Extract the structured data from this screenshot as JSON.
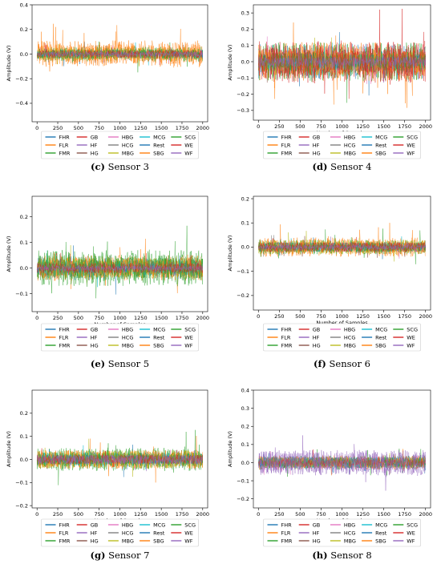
{
  "legend_labels": [
    "FHR",
    "GB",
    "HBG",
    "MCG",
    "SCG",
    "FLR",
    "HF",
    "HCG",
    "Rest",
    "WE",
    "FMR",
    "HG",
    "MBG",
    "SBG",
    "WF"
  ],
  "chart_data": [
    {
      "type": "line",
      "caption_letter": "(c)",
      "caption_text": " Sensor 3",
      "xlabel": "Number of Samples",
      "ylabel": "Amplitude (V)",
      "xlim": [
        -60,
        2060
      ],
      "ylim": [
        -0.55,
        0.4
      ],
      "xticks": [
        0,
        250,
        500,
        750,
        1000,
        1250,
        1500,
        1750,
        2000
      ],
      "yticks": [
        -0.4,
        -0.2,
        0.0,
        0.2,
        0.4
      ],
      "ytick_labels": [
        "−0.4",
        "−0.2",
        "0.0",
        "0.2",
        "0.4"
      ],
      "grid": false,
      "legend": "bottom",
      "series": [
        {
          "name": "FHR",
          "color": "#1f77b4",
          "amp": 0.04
        },
        {
          "name": "FLR",
          "color": "#ff7f0e",
          "amp": 0.11
        },
        {
          "name": "FMR",
          "color": "#2ca02c",
          "amp": 0.06
        },
        {
          "name": "GB",
          "color": "#d62728",
          "amp": 0.04
        },
        {
          "name": "HF",
          "color": "#9467bd",
          "amp": 0.03
        },
        {
          "name": "HG",
          "color": "#8c564b",
          "amp": 0.03
        },
        {
          "name": "HBG",
          "color": "#e377c2",
          "amp": 0.03
        },
        {
          "name": "HCG",
          "color": "#7f7f7f",
          "amp": 0.03
        },
        {
          "name": "MBG",
          "color": "#bcbd22",
          "amp": 0.05
        },
        {
          "name": "MCG",
          "color": "#17becf",
          "amp": 0.04
        },
        {
          "name": "Rest",
          "color": "#1f77b4",
          "amp": 0.02
        },
        {
          "name": "SBG",
          "color": "#ff7f0e",
          "amp": 0.08
        },
        {
          "name": "SCG",
          "color": "#2ca02c",
          "amp": 0.04
        },
        {
          "name": "WE",
          "color": "#d62728",
          "amp": 0.03
        },
        {
          "name": "WF",
          "color": "#9467bd",
          "amp": 0.02
        }
      ]
    },
    {
      "type": "line",
      "caption_letter": "(d)",
      "caption_text": " Sensor 4",
      "xlabel": "Number of Samples",
      "ylabel": "Amplitude (V)",
      "xlim": [
        -60,
        2060
      ],
      "ylim": [
        -0.36,
        0.35
      ],
      "xticks": [
        0,
        250,
        500,
        750,
        1000,
        1250,
        1500,
        1750,
        2000
      ],
      "yticks": [
        -0.3,
        -0.2,
        -0.1,
        0.0,
        0.1,
        0.2,
        0.3
      ],
      "ytick_labels": [
        "−0.3",
        "−0.2",
        "−0.1",
        "0.0",
        "0.1",
        "0.2",
        "0.3"
      ],
      "grid": false,
      "legend": "bottom",
      "series": [
        {
          "name": "FHR",
          "color": "#1f77b4",
          "amp": 0.11
        },
        {
          "name": "FLR",
          "color": "#ff7f0e",
          "amp": 0.12
        },
        {
          "name": "FMR",
          "color": "#2ca02c",
          "amp": 0.12
        },
        {
          "name": "GB",
          "color": "#d62728",
          "amp": 0.13
        },
        {
          "name": "HF",
          "color": "#9467bd",
          "amp": 0.05
        },
        {
          "name": "HG",
          "color": "#8c564b",
          "amp": 0.07
        },
        {
          "name": "HBG",
          "color": "#e377c2",
          "amp": 0.06
        },
        {
          "name": "HCG",
          "color": "#7f7f7f",
          "amp": 0.05
        },
        {
          "name": "MBG",
          "color": "#bcbd22",
          "amp": 0.06
        },
        {
          "name": "MCG",
          "color": "#17becf",
          "amp": 0.05
        },
        {
          "name": "Rest",
          "color": "#1f77b4",
          "amp": 0.04
        },
        {
          "name": "SBG",
          "color": "#ff7f0e",
          "amp": 0.08
        },
        {
          "name": "SCG",
          "color": "#2ca02c",
          "amp": 0.06
        },
        {
          "name": "WE",
          "color": "#d62728",
          "amp": 0.09
        },
        {
          "name": "WF",
          "color": "#9467bd",
          "amp": 0.03
        }
      ]
    },
    {
      "type": "line",
      "caption_letter": "(e)",
      "caption_text": " Sensor 5",
      "xlabel": "Number of Samples",
      "ylabel": "Amplitude (V)",
      "xlim": [
        -60,
        2060
      ],
      "ylim": [
        -0.17,
        0.28
      ],
      "xticks": [
        0,
        250,
        500,
        750,
        1000,
        1250,
        1500,
        1750,
        2000
      ],
      "yticks": [
        -0.1,
        0.0,
        0.1,
        0.2
      ],
      "ytick_labels": [
        "−0.1",
        "0.0",
        "0.1",
        "0.2"
      ],
      "grid": false,
      "legend": "bottom",
      "series": [
        {
          "name": "FHR",
          "color": "#1f77b4",
          "amp": 0.04
        },
        {
          "name": "FLR",
          "color": "#ff7f0e",
          "amp": 0.05
        },
        {
          "name": "FMR",
          "color": "#2ca02c",
          "amp": 0.07
        },
        {
          "name": "GB",
          "color": "#d62728",
          "amp": 0.03
        },
        {
          "name": "HF",
          "color": "#9467bd",
          "amp": 0.02
        },
        {
          "name": "HG",
          "color": "#8c564b",
          "amp": 0.02
        },
        {
          "name": "HBG",
          "color": "#e377c2",
          "amp": 0.02
        },
        {
          "name": "HCG",
          "color": "#7f7f7f",
          "amp": 0.02
        },
        {
          "name": "MBG",
          "color": "#bcbd22",
          "amp": 0.04
        },
        {
          "name": "MCG",
          "color": "#17becf",
          "amp": 0.03
        },
        {
          "name": "Rest",
          "color": "#1f77b4",
          "amp": 0.02
        },
        {
          "name": "SBG",
          "color": "#ff7f0e",
          "amp": 0.04
        },
        {
          "name": "SCG",
          "color": "#2ca02c",
          "amp": 0.05
        },
        {
          "name": "WE",
          "color": "#d62728",
          "amp": 0.02
        },
        {
          "name": "WF",
          "color": "#9467bd",
          "amp": 0.01
        }
      ]
    },
    {
      "type": "line",
      "caption_letter": "(f)",
      "caption_text": " Sensor 6",
      "xlabel": "Number of Samples",
      "ylabel": "Amplitude (V)",
      "xlim": [
        -60,
        2060
      ],
      "ylim": [
        -0.26,
        0.21
      ],
      "xticks": [
        0,
        250,
        500,
        750,
        1000,
        1250,
        1500,
        1750,
        2000
      ],
      "yticks": [
        -0.2,
        -0.1,
        0.0,
        0.1,
        0.2
      ],
      "ytick_labels": [
        "−0.2",
        "−0.1",
        "0.0",
        "0.1",
        "0.2"
      ],
      "grid": false,
      "legend": "bottom",
      "series": [
        {
          "name": "FHR",
          "color": "#1f77b4",
          "amp": 0.02
        },
        {
          "name": "FLR",
          "color": "#ff7f0e",
          "amp": 0.04
        },
        {
          "name": "FMR",
          "color": "#2ca02c",
          "amp": 0.03
        },
        {
          "name": "GB",
          "color": "#d62728",
          "amp": 0.02
        },
        {
          "name": "HF",
          "color": "#9467bd",
          "amp": 0.02
        },
        {
          "name": "HG",
          "color": "#8c564b",
          "amp": 0.02
        },
        {
          "name": "HBG",
          "color": "#e377c2",
          "amp": 0.02
        },
        {
          "name": "HCG",
          "color": "#7f7f7f",
          "amp": 0.02
        },
        {
          "name": "MBG",
          "color": "#bcbd22",
          "amp": 0.03
        },
        {
          "name": "MCG",
          "color": "#17becf",
          "amp": 0.02
        },
        {
          "name": "Rest",
          "color": "#1f77b4",
          "amp": 0.01
        },
        {
          "name": "SBG",
          "color": "#ff7f0e",
          "amp": 0.03
        },
        {
          "name": "SCG",
          "color": "#2ca02c",
          "amp": 0.02
        },
        {
          "name": "WE",
          "color": "#d62728",
          "amp": 0.02
        },
        {
          "name": "WF",
          "color": "#9467bd",
          "amp": 0.01
        }
      ]
    },
    {
      "type": "line",
      "caption_letter": "(g)",
      "caption_text": " Sensor 7",
      "xlabel": "Number of Samples",
      "ylabel": "Amplitude (V)",
      "xlim": [
        -60,
        2060
      ],
      "ylim": [
        -0.21,
        0.3
      ],
      "xticks": [
        0,
        250,
        500,
        750,
        1000,
        1250,
        1500,
        1750,
        2000
      ],
      "yticks": [
        -0.2,
        -0.1,
        0.0,
        0.1,
        0.2
      ],
      "ytick_labels": [
        "−0.2",
        "−0.1",
        "0.0",
        "0.1",
        "0.2"
      ],
      "grid": false,
      "legend": "bottom",
      "series": [
        {
          "name": "FHR",
          "color": "#1f77b4",
          "amp": 0.03
        },
        {
          "name": "FLR",
          "color": "#ff7f0e",
          "amp": 0.04
        },
        {
          "name": "FMR",
          "color": "#2ca02c",
          "amp": 0.05
        },
        {
          "name": "GB",
          "color": "#d62728",
          "amp": 0.02
        },
        {
          "name": "HF",
          "color": "#9467bd",
          "amp": 0.02
        },
        {
          "name": "HG",
          "color": "#8c564b",
          "amp": 0.02
        },
        {
          "name": "HBG",
          "color": "#e377c2",
          "amp": 0.02
        },
        {
          "name": "HCG",
          "color": "#7f7f7f",
          "amp": 0.02
        },
        {
          "name": "MBG",
          "color": "#bcbd22",
          "amp": 0.04
        },
        {
          "name": "MCG",
          "color": "#17becf",
          "amp": 0.03
        },
        {
          "name": "Rest",
          "color": "#1f77b4",
          "amp": 0.02
        },
        {
          "name": "SBG",
          "color": "#ff7f0e",
          "amp": 0.04
        },
        {
          "name": "SCG",
          "color": "#2ca02c",
          "amp": 0.03
        },
        {
          "name": "WE",
          "color": "#d62728",
          "amp": 0.02
        },
        {
          "name": "WF",
          "color": "#9467bd",
          "amp": 0.02
        }
      ]
    },
    {
      "type": "line",
      "caption_letter": "(h)",
      "caption_text": " Sensor 8",
      "xlabel": "Number of Samples",
      "ylabel": "Amplitude (V)",
      "xlim": [
        -60,
        2060
      ],
      "ylim": [
        -0.25,
        0.4
      ],
      "xticks": [
        0,
        250,
        500,
        750,
        1000,
        1250,
        1500,
        1750,
        2000
      ],
      "yticks": [
        -0.2,
        -0.1,
        0.0,
        0.1,
        0.2,
        0.3,
        0.4
      ],
      "ytick_labels": [
        "−0.2",
        "−0.1",
        "0.0",
        "0.1",
        "0.2",
        "0.3",
        "0.4"
      ],
      "grid": false,
      "legend": "bottom",
      "series": [
        {
          "name": "FHR",
          "color": "#1f77b4",
          "amp": 0.03
        },
        {
          "name": "FLR",
          "color": "#ff7f0e",
          "amp": 0.04
        },
        {
          "name": "FMR",
          "color": "#2ca02c",
          "amp": 0.04
        },
        {
          "name": "GB",
          "color": "#d62728",
          "amp": 0.03
        },
        {
          "name": "HF",
          "color": "#9467bd",
          "amp": 0.06
        },
        {
          "name": "HG",
          "color": "#8c564b",
          "amp": 0.03
        },
        {
          "name": "HBG",
          "color": "#e377c2",
          "amp": 0.03
        },
        {
          "name": "HCG",
          "color": "#7f7f7f",
          "amp": 0.03
        },
        {
          "name": "MBG",
          "color": "#bcbd22",
          "amp": 0.03
        },
        {
          "name": "MCG",
          "color": "#17becf",
          "amp": 0.03
        },
        {
          "name": "Rest",
          "color": "#1f77b4",
          "amp": 0.02
        },
        {
          "name": "SBG",
          "color": "#ff7f0e",
          "amp": 0.03
        },
        {
          "name": "SCG",
          "color": "#2ca02c",
          "amp": 0.03
        },
        {
          "name": "WE",
          "color": "#d62728",
          "amp": 0.02
        },
        {
          "name": "WF",
          "color": "#9467bd",
          "amp": 0.07
        }
      ]
    }
  ]
}
